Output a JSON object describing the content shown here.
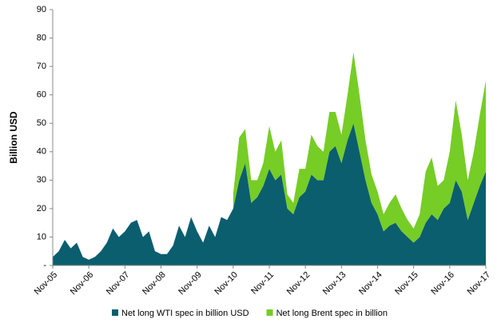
{
  "chart_data": {
    "type": "stacked_area",
    "y_label": "Billion USD",
    "x": [
      "Nov-05",
      null,
      null,
      null,
      null,
      null,
      "Nov-06",
      null,
      null,
      null,
      null,
      null,
      "Nov-07",
      null,
      null,
      null,
      null,
      null,
      "Nov-08",
      null,
      null,
      null,
      null,
      null,
      "Nov-09",
      null,
      null,
      null,
      null,
      null,
      "Nov-10",
      null,
      null,
      null,
      null,
      null,
      "Nov-11",
      null,
      null,
      null,
      null,
      null,
      "Nov-12",
      null,
      null,
      null,
      null,
      null,
      "Nov-13",
      null,
      null,
      null,
      null,
      null,
      "Nov-14",
      null,
      null,
      null,
      null,
      null,
      "Nov-15",
      null,
      null,
      null,
      null,
      null,
      "Nov-16",
      null,
      null,
      null,
      null,
      null,
      "Nov-17"
    ],
    "series": [
      {
        "name": "Net long WTI spec in billion USD",
        "color": "#0b5e6e",
        "values": [
          3,
          5,
          9,
          6,
          8,
          3,
          2,
          3,
          5,
          8,
          13,
          10,
          12,
          15,
          16,
          10,
          12,
          5,
          4,
          4,
          7,
          14,
          10,
          17,
          12,
          8,
          14,
          10,
          17,
          16,
          20,
          30,
          36,
          22,
          24,
          28,
          34,
          30,
          32,
          20,
          18,
          24,
          26,
          32,
          30,
          30,
          40,
          42,
          36,
          44,
          50,
          40,
          30,
          22,
          18,
          12,
          14,
          15,
          12,
          10,
          8,
          10,
          15,
          18,
          16,
          20,
          22,
          30,
          26,
          16,
          22,
          28,
          33
        ]
      },
      {
        "name": "Net long Brent spec in billion",
        "color": "#76cd26",
        "values": [
          null,
          null,
          null,
          null,
          null,
          null,
          null,
          null,
          null,
          null,
          null,
          null,
          null,
          null,
          null,
          null,
          null,
          null,
          null,
          null,
          null,
          null,
          null,
          null,
          null,
          null,
          null,
          null,
          null,
          null,
          5,
          15,
          12,
          8,
          6,
          8,
          15,
          10,
          12,
          5,
          4,
          10,
          8,
          14,
          12,
          10,
          14,
          12,
          10,
          16,
          25,
          20,
          14,
          10,
          8,
          6,
          8,
          10,
          8,
          6,
          5,
          8,
          18,
          20,
          12,
          10,
          18,
          28,
          20,
          14,
          18,
          25,
          32
        ]
      }
    ],
    "ylim": [
      0,
      90
    ],
    "yticks": [
      {
        "value": 0,
        "label": "-"
      },
      10,
      20,
      30,
      40,
      50,
      60,
      70,
      80,
      90
    ],
    "grid": false,
    "legend": "bottom"
  }
}
